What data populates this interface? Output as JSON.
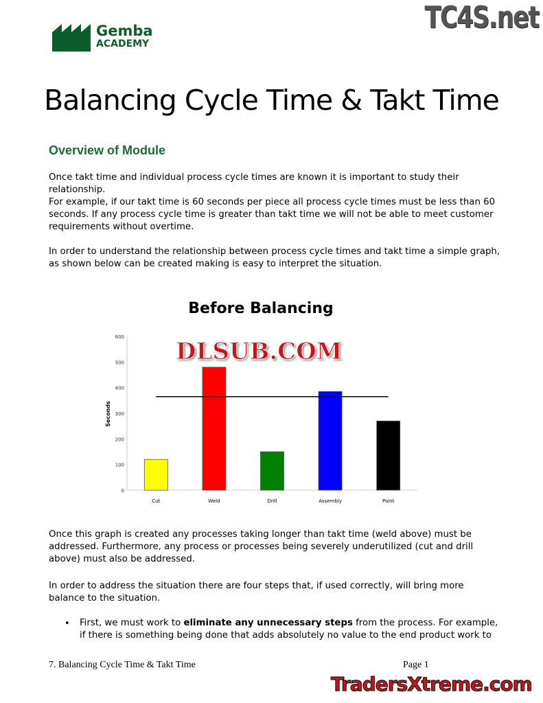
{
  "logo": {
    "line1": "Gemba",
    "line2": "ACADEMY",
    "color": "#0b5e2a"
  },
  "watermarks": {
    "top_right": "TC4S.net",
    "chart": "DLSUB.COM",
    "bottom": "TradersXtreme.com"
  },
  "title": "Balancing Cycle Time & Takt Time",
  "section_heading": "Overview of Module",
  "paragraphs": [
    "Once takt time and individual process cycle times are known it is important to study their relationship.",
    "For example, if our takt time is 60 seconds per piece all process cycle times must be less than 60 seconds.  If any process cycle time is greater than takt time we will not be able to meet customer requirements without overtime.",
    "In order to understand the relationship between process cycle times and takt time a simple graph, as shown below can be created making is easy to interpret the situation.",
    "Once this graph is created any processes taking longer than takt time (weld above) must be addressed. Furthermore, any process or processes being severely underutilized (cut and drill above) must also be addressed.",
    "In order to address the situation there are four steps that, if used correctly, will bring more balance to the situation."
  ],
  "bullet": {
    "pre": "First, we must work to ",
    "bold": "eliminate any unnecessary steps",
    "post": " from the process.  For example, if there is something being done that adds absolutely no value to the end product work to"
  },
  "footer": {
    "left": "7. Balancing Cycle Time & Takt Time",
    "right": "Page 1"
  },
  "chart_data": {
    "type": "bar",
    "title": "Before Balancing",
    "ylabel": "Seconds",
    "xlabel": "",
    "categories": [
      "Cut",
      "Weld",
      "Drill",
      "Assembly",
      "Paint"
    ],
    "values": [
      120,
      480,
      150,
      385,
      270
    ],
    "colors": [
      "#ffff00",
      "#ff0000",
      "#008000",
      "#0000ff",
      "#000000"
    ],
    "takt_line": 365,
    "ylim": [
      0,
      600
    ],
    "yticks": [
      "0",
      "100",
      "200",
      "300",
      "400",
      "500",
      "600"
    ],
    "grid": false,
    "legend": "none"
  }
}
